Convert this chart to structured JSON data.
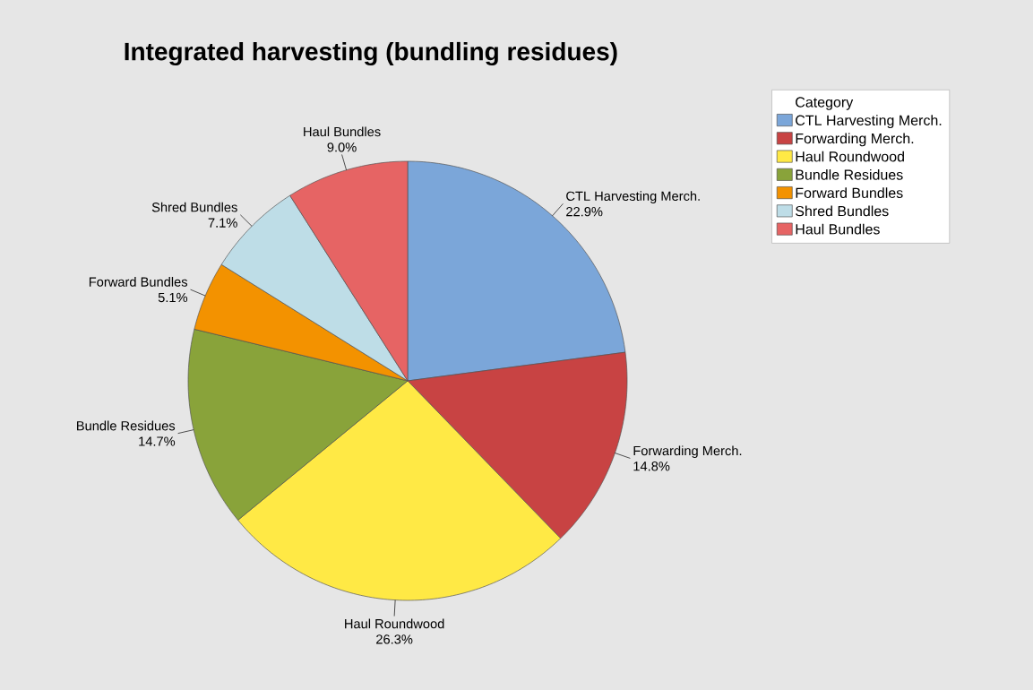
{
  "chart_data": {
    "type": "pie",
    "title": "Integrated harvesting (bundling residues)",
    "legend_title": "Category",
    "categories": [
      "CTL Harvesting Merch.",
      "Forwarding Merch.",
      "Haul Roundwood",
      "Bundle Residues",
      "Forward Bundles",
      "Shred Bundles",
      "Haul Bundles"
    ],
    "values": [
      22.9,
      14.8,
      26.3,
      14.7,
      5.1,
      7.1,
      9.0
    ],
    "value_labels": [
      "22.9%",
      "14.8%",
      "26.3%",
      "14.7%",
      "5.1%",
      "7.1%",
      "9.0%"
    ],
    "colors": [
      "#7ba6d9",
      "#c84343",
      "#ffe945",
      "#89a33a",
      "#f39200",
      "#bedde7",
      "#e66464"
    ],
    "legend": "top right"
  }
}
